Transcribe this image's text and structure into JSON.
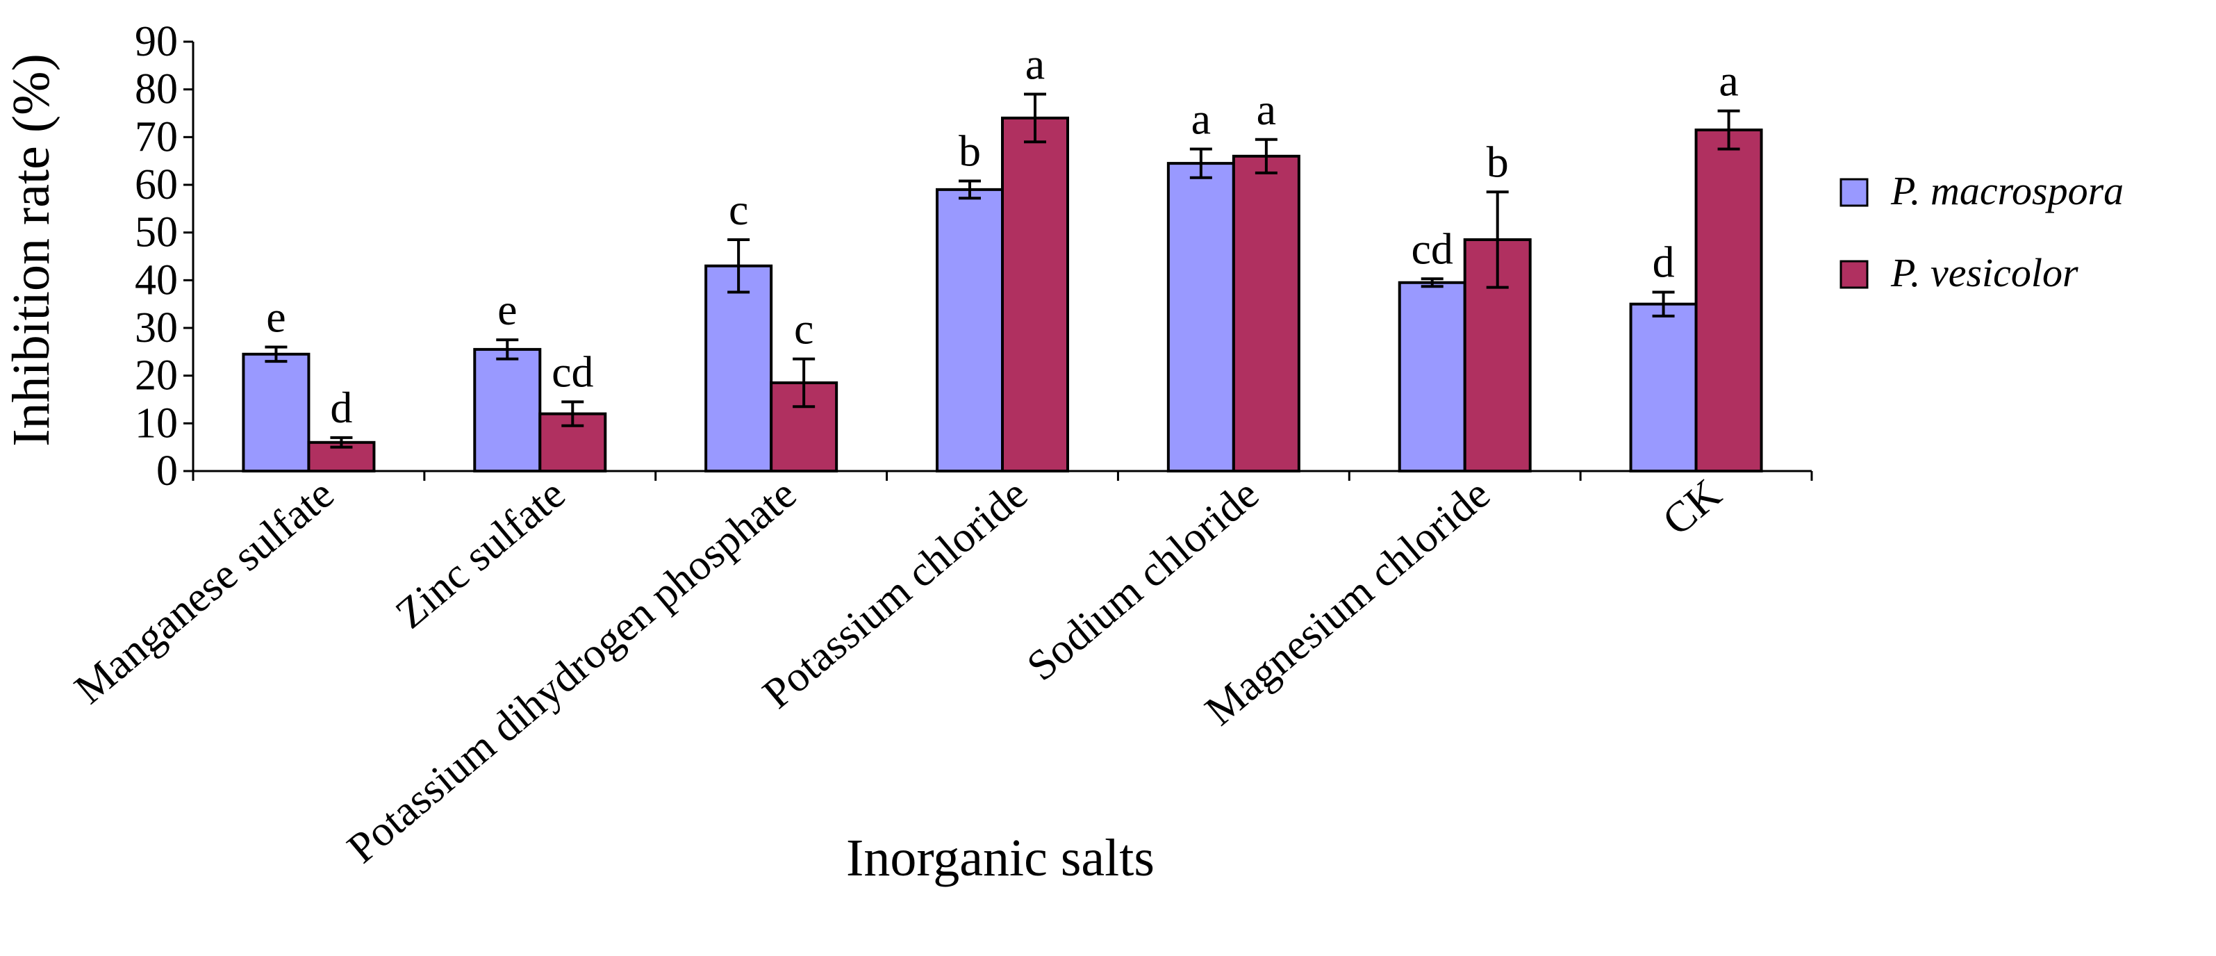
{
  "chart_data": {
    "type": "bar",
    "title": "",
    "xlabel": "Inorganic salts",
    "ylabel": "Inhibition rate (%)",
    "ylim": [
      0,
      90
    ],
    "yticks": [
      0,
      10,
      20,
      30,
      40,
      50,
      60,
      70,
      80,
      90
    ],
    "grid": false,
    "legend_position": "right",
    "categories": [
      "Manganese sulfate",
      "Zinc sulfate",
      "Potassium dihydrogen phosphate",
      "Potassium chloride",
      "Sodium chloride",
      "Magnesium chloride",
      "CK"
    ],
    "series": [
      {
        "name": "P. macrospora",
        "color": "#9999ff",
        "values": [
          24.5,
          25.5,
          43,
          59,
          64.5,
          39.5,
          35
        ],
        "errors": [
          1.5,
          2,
          5.5,
          1.8,
          3,
          0.8,
          2.5
        ],
        "letters": [
          "e",
          "e",
          "c",
          "b",
          "a",
          "cd",
          "d"
        ]
      },
      {
        "name": "P. vesicolor",
        "color": "#b03060",
        "values": [
          6,
          12,
          18.5,
          74,
          66,
          48.5,
          71.5
        ],
        "errors": [
          1,
          2.5,
          5,
          5,
          3.5,
          10,
          4
        ],
        "letters": [
          "d",
          "cd",
          "c",
          "a",
          "a",
          "b",
          "a"
        ]
      }
    ]
  }
}
